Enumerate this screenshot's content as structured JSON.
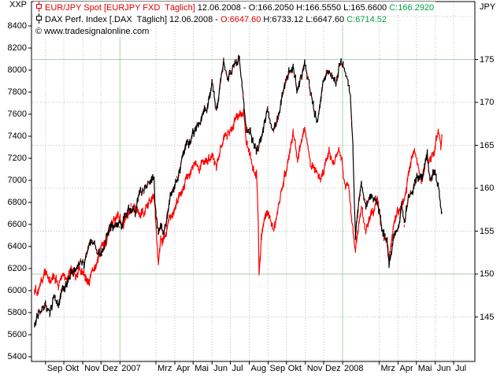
{
  "axis_units": {
    "left": "XXP",
    "right": "JPY"
  },
  "watermark": "© www.tradesignalonline.com",
  "legend": [
    {
      "icon": "candlestick-icon",
      "icon_color": "#dd0000",
      "title": "EUR/JPY Spot [EURJPY FXD  Täglich]",
      "title_color": "#dd0000",
      "segments": [
        {
          "text": " 12.06.2008 - O:166.2050 H:166.5550 L:165.6600 ",
          "color": "#000000"
        },
        {
          "text": "C:166.2920",
          "color": "#00a33a"
        }
      ]
    },
    {
      "icon": "candlestick-icon",
      "icon_color": "#000000",
      "title": "DAX Perf. Index [.DAX  Täglich]",
      "title_color": "#000000",
      "segments": [
        {
          "text": " 12.06.2008 - ",
          "color": "#000000"
        },
        {
          "text": "O:6647.60",
          "color": "#dd0000"
        },
        {
          "text": " H:6733.12 L:6647.60 ",
          "color": "#000000"
        },
        {
          "text": "C:6714.52",
          "color": "#00a33a"
        }
      ]
    }
  ],
  "axes": {
    "left": {
      "unit": "XXP",
      "ticks": [
        8400,
        8200,
        8000,
        7800,
        7600,
        7400,
        7200,
        7000,
        6800,
        6600,
        6400,
        6200,
        6000,
        5800,
        5600,
        5400
      ]
    },
    "right": {
      "unit": "JPY",
      "label_ticks": [
        175,
        170,
        165,
        160,
        155,
        150,
        145
      ],
      "solid_gridlines": [
        175,
        150
      ],
      "dotted_gridlines": [
        180,
        170,
        165,
        160,
        155,
        145,
        140
      ]
    },
    "bottom": {
      "ticks": [
        {
          "label": "Sep",
          "date": "2006-09-01",
          "year": false
        },
        {
          "label": "Okt",
          "date": "2006-10-01",
          "year": false
        },
        {
          "label": "Nov",
          "date": "2006-11-01",
          "year": false
        },
        {
          "label": "Dez",
          "date": "2006-12-01",
          "year": false
        },
        {
          "label": "2007",
          "date": "2007-01-01",
          "year": true
        },
        {
          "label": "Mrz",
          "date": "2007-03-01",
          "year": false
        },
        {
          "label": "Apr",
          "date": "2007-04-01",
          "year": false
        },
        {
          "label": "Mai",
          "date": "2007-05-01",
          "year": false
        },
        {
          "label": "Jun",
          "date": "2007-06-01",
          "year": false
        },
        {
          "label": "Jul",
          "date": "2007-07-01",
          "year": false
        },
        {
          "label": "Aug",
          "date": "2007-08-01",
          "year": false
        },
        {
          "label": "Sep",
          "date": "2007-09-01",
          "year": false
        },
        {
          "label": "Okt",
          "date": "2007-10-01",
          "year": false
        },
        {
          "label": "Nov",
          "date": "2007-11-01",
          "year": false
        },
        {
          "label": "Dez",
          "date": "2007-12-01",
          "year": false
        },
        {
          "label": "2008",
          "date": "2008-01-01",
          "year": true
        },
        {
          "label": "Mrz",
          "date": "2008-03-01",
          "year": false
        },
        {
          "label": "Apr",
          "date": "2008-04-01",
          "year": false
        },
        {
          "label": "Mai",
          "date": "2008-05-01",
          "year": false
        },
        {
          "label": "Jun",
          "date": "2008-06-01",
          "year": false
        },
        {
          "label": "Jul",
          "date": "2008-07-01",
          "year": false
        }
      ]
    }
  },
  "colors": {
    "series_red": "#ff0000",
    "series_black": "#000000",
    "down_fleck_red": "#cc0000",
    "grid_dotted": "#b8b8b8",
    "grid_solid_green": "#abcfab",
    "border": "#000000",
    "background": "#ffffff",
    "value_green": "#00a33a",
    "legend_red": "#dd0000"
  },
  "chart_data": {
    "type": "line",
    "title": "EUR/JPY Spot vs DAX Perf. Index, daily, Aug 2006 - Jun 2008",
    "time_range": {
      "start": "2006-08-09",
      "end": "2008-07-01"
    },
    "left_axis": {
      "label": "XXP",
      "top_value": 8400,
      "bottom_value": 5400
    },
    "right_axis": {
      "label": "JPY",
      "top_value": 180,
      "bottom_value": 140.2
    },
    "grid": "dotted-months-and-jpy-levels",
    "legend_position": "top-left",
    "series": [
      {
        "name": "EUR/JPY Spot",
        "symbol": "EURJPY FXD",
        "interval": "Täglich",
        "axis": "right",
        "color": "#ff0000",
        "last": {
          "date": "12.06.2008",
          "open": 166.205,
          "high": 166.555,
          "low": 165.66,
          "close": 166.292
        },
        "points": [
          [
            "2006-08-14",
            148.2
          ],
          [
            "2006-08-18",
            147.9
          ],
          [
            "2006-08-25",
            149.0
          ],
          [
            "2006-09-01",
            150.2
          ],
          [
            "2006-09-08",
            149.0
          ],
          [
            "2006-09-15",
            149.8
          ],
          [
            "2006-09-22",
            148.6
          ],
          [
            "2006-09-29",
            149.9
          ],
          [
            "2006-10-06",
            149.4
          ],
          [
            "2006-10-13",
            150.6
          ],
          [
            "2006-10-20",
            149.9
          ],
          [
            "2006-10-27",
            150.4
          ],
          [
            "2006-11-03",
            150.0
          ],
          [
            "2006-11-10",
            149.0
          ],
          [
            "2006-11-17",
            150.3
          ],
          [
            "2006-11-24",
            151.3
          ],
          [
            "2006-12-01",
            153.2
          ],
          [
            "2006-12-08",
            153.5
          ],
          [
            "2006-12-15",
            155.2
          ],
          [
            "2006-12-22",
            156.4
          ],
          [
            "2006-12-29",
            156.9
          ],
          [
            "2007-01-05",
            155.7
          ],
          [
            "2007-01-12",
            156.8
          ],
          [
            "2007-01-19",
            157.4
          ],
          [
            "2007-01-26",
            157.8
          ],
          [
            "2007-02-02",
            157.0
          ],
          [
            "2007-02-09",
            157.2
          ],
          [
            "2007-02-16",
            158.3
          ],
          [
            "2007-02-26",
            159.2
          ],
          [
            "2007-03-02",
            154.6
          ],
          [
            "2007-03-05",
            151.2
          ],
          [
            "2007-03-09",
            153.9
          ],
          [
            "2007-03-16",
            154.2
          ],
          [
            "2007-03-23",
            156.4
          ],
          [
            "2007-03-30",
            157.3
          ],
          [
            "2007-04-06",
            158.6
          ],
          [
            "2007-04-13",
            159.7
          ],
          [
            "2007-04-20",
            161.2
          ],
          [
            "2007-04-27",
            161.9
          ],
          [
            "2007-05-04",
            162.8
          ],
          [
            "2007-05-11",
            162.2
          ],
          [
            "2007-05-18",
            163.3
          ],
          [
            "2007-05-25",
            163.2
          ],
          [
            "2007-06-01",
            163.8
          ],
          [
            "2007-06-08",
            162.4
          ],
          [
            "2007-06-15",
            164.8
          ],
          [
            "2007-06-22",
            165.9
          ],
          [
            "2007-06-29",
            166.6
          ],
          [
            "2007-07-06",
            167.4
          ],
          [
            "2007-07-13",
            168.4
          ],
          [
            "2007-07-23",
            168.9
          ],
          [
            "2007-07-27",
            165.5
          ],
          [
            "2007-08-03",
            163.5
          ],
          [
            "2007-08-10",
            161.6
          ],
          [
            "2007-08-13",
            162.0
          ],
          [
            "2007-08-16",
            155.0
          ],
          [
            "2007-08-17",
            150.0
          ],
          [
            "2007-08-21",
            154.2
          ],
          [
            "2007-08-24",
            156.0
          ],
          [
            "2007-08-31",
            157.3
          ],
          [
            "2007-09-10",
            155.2
          ],
          [
            "2007-09-18",
            158.0
          ],
          [
            "2007-09-28",
            161.4
          ],
          [
            "2007-10-05",
            163.5
          ],
          [
            "2007-10-12",
            166.5
          ],
          [
            "2007-10-19",
            163.5
          ],
          [
            "2007-10-26",
            165.5
          ],
          [
            "2007-10-31",
            167.0
          ],
          [
            "2007-11-09",
            162.8
          ],
          [
            "2007-11-16",
            162.3
          ],
          [
            "2007-11-26",
            160.8
          ],
          [
            "2007-12-03",
            162.5
          ],
          [
            "2007-12-10",
            164.4
          ],
          [
            "2007-12-17",
            162.8
          ],
          [
            "2007-12-26",
            164.8
          ],
          [
            "2007-12-31",
            163.2
          ],
          [
            "2008-01-04",
            160.5
          ],
          [
            "2008-01-11",
            160.2
          ],
          [
            "2008-01-16",
            156.6
          ],
          [
            "2008-01-22",
            152.6
          ],
          [
            "2008-01-28",
            156.2
          ],
          [
            "2008-02-01",
            157.6
          ],
          [
            "2008-02-08",
            155.2
          ],
          [
            "2008-02-15",
            156.8
          ],
          [
            "2008-02-22",
            157.5
          ],
          [
            "2008-02-27",
            159.2
          ],
          [
            "2008-03-03",
            156.2
          ],
          [
            "2008-03-07",
            154.6
          ],
          [
            "2008-03-14",
            154.0
          ],
          [
            "2008-03-17",
            152.0
          ],
          [
            "2008-03-24",
            155.2
          ],
          [
            "2008-03-31",
            157.3
          ],
          [
            "2008-04-07",
            157.8
          ],
          [
            "2008-04-11",
            158.7
          ],
          [
            "2008-04-18",
            161.5
          ],
          [
            "2008-04-23",
            163.5
          ],
          [
            "2008-04-28",
            164.8
          ],
          [
            "2008-05-02",
            163.3
          ],
          [
            "2008-05-09",
            160.8
          ],
          [
            "2008-05-14",
            162.2
          ],
          [
            "2008-05-16",
            163.4
          ],
          [
            "2008-05-23",
            163.1
          ],
          [
            "2008-05-30",
            164.4
          ],
          [
            "2008-06-06",
            166.9
          ],
          [
            "2008-06-10",
            165.0
          ],
          [
            "2008-06-12",
            166.3
          ]
        ]
      },
      {
        "name": "DAX Perf. Index",
        "symbol": ".DAX",
        "interval": "Täglich",
        "axis": "left",
        "color": "#000000",
        "last": {
          "date": "12.06.2008",
          "open": 6647.6,
          "high": 6733.12,
          "low": 6647.6,
          "close": 6714.52
        },
        "points": [
          [
            "2006-08-14",
            5660
          ],
          [
            "2006-08-18",
            5780
          ],
          [
            "2006-08-25",
            5820
          ],
          [
            "2006-09-01",
            5870
          ],
          [
            "2006-09-08",
            5800
          ],
          [
            "2006-09-15",
            5940
          ],
          [
            "2006-09-22",
            5890
          ],
          [
            "2006-09-29",
            6010
          ],
          [
            "2006-10-06",
            6070
          ],
          [
            "2006-10-13",
            6160
          ],
          [
            "2006-10-20",
            6200
          ],
          [
            "2006-10-27",
            6270
          ],
          [
            "2006-11-03",
            6250
          ],
          [
            "2006-11-10",
            6390
          ],
          [
            "2006-11-17",
            6450
          ],
          [
            "2006-11-24",
            6370
          ],
          [
            "2006-12-01",
            6310
          ],
          [
            "2006-12-08",
            6450
          ],
          [
            "2006-12-15",
            6590
          ],
          [
            "2006-12-22",
            6600
          ],
          [
            "2006-12-29",
            6600
          ],
          [
            "2007-01-05",
            6600
          ],
          [
            "2007-01-12",
            6710
          ],
          [
            "2007-01-19",
            6750
          ],
          [
            "2007-01-26",
            6700
          ],
          [
            "2007-02-02",
            6890
          ],
          [
            "2007-02-09",
            6910
          ],
          [
            "2007-02-16",
            6960
          ],
          [
            "2007-02-26",
            7010
          ],
          [
            "2007-02-27",
            6820
          ],
          [
            "2007-03-01",
            6700
          ],
          [
            "2007-03-05",
            6530
          ],
          [
            "2007-03-09",
            6600
          ],
          [
            "2007-03-14",
            6500
          ],
          [
            "2007-03-23",
            6820
          ],
          [
            "2007-03-30",
            6920
          ],
          [
            "2007-04-06",
            7030
          ],
          [
            "2007-04-13",
            7190
          ],
          [
            "2007-04-20",
            7330
          ],
          [
            "2007-04-27",
            7360
          ],
          [
            "2007-05-04",
            7480
          ],
          [
            "2007-05-11",
            7500
          ],
          [
            "2007-05-18",
            7610
          ],
          [
            "2007-05-25",
            7660
          ],
          [
            "2007-06-01",
            7890
          ],
          [
            "2007-06-08",
            7620
          ],
          [
            "2007-06-15",
            7900
          ],
          [
            "2007-06-20",
            8070
          ],
          [
            "2007-06-26",
            7930
          ],
          [
            "2007-07-05",
            8010
          ],
          [
            "2007-07-13",
            8090
          ],
          [
            "2007-07-16",
            8100
          ],
          [
            "2007-07-20",
            7870
          ],
          [
            "2007-07-27",
            7450
          ],
          [
            "2007-08-03",
            7430
          ],
          [
            "2007-08-09",
            7290
          ],
          [
            "2007-08-16",
            7280
          ],
          [
            "2007-08-24",
            7480
          ],
          [
            "2007-08-31",
            7630
          ],
          [
            "2007-09-10",
            7440
          ],
          [
            "2007-09-18",
            7580
          ],
          [
            "2007-09-28",
            7860
          ],
          [
            "2007-10-05",
            7980
          ],
          [
            "2007-10-12",
            8030
          ],
          [
            "2007-10-18",
            7830
          ],
          [
            "2007-10-26",
            7950
          ],
          [
            "2007-10-31",
            8060
          ],
          [
            "2007-11-09",
            7810
          ],
          [
            "2007-11-16",
            7610
          ],
          [
            "2007-11-21",
            7520
          ],
          [
            "2007-11-30",
            7870
          ],
          [
            "2007-12-07",
            7990
          ],
          [
            "2007-12-14",
            7940
          ],
          [
            "2007-12-21",
            7870
          ],
          [
            "2007-12-28",
            8070
          ],
          [
            "2008-01-02",
            8045
          ],
          [
            "2008-01-08",
            7950
          ],
          [
            "2008-01-14",
            7780
          ],
          [
            "2008-01-18",
            7310
          ],
          [
            "2008-01-22",
            6480
          ],
          [
            "2008-01-28",
            6820
          ],
          [
            "2008-02-01",
            6950
          ],
          [
            "2008-02-08",
            6770
          ],
          [
            "2008-02-15",
            6830
          ],
          [
            "2008-02-22",
            6850
          ],
          [
            "2008-02-29",
            6750
          ],
          [
            "2008-03-07",
            6520
          ],
          [
            "2008-03-14",
            6450
          ],
          [
            "2008-03-17",
            6250
          ],
          [
            "2008-03-25",
            6480
          ],
          [
            "2008-03-31",
            6530
          ],
          [
            "2008-04-07",
            6770
          ],
          [
            "2008-04-11",
            6600
          ],
          [
            "2008-04-18",
            6840
          ],
          [
            "2008-04-25",
            6900
          ],
          [
            "2008-05-02",
            7050
          ],
          [
            "2008-05-09",
            7010
          ],
          [
            "2008-05-16",
            7160
          ],
          [
            "2008-05-19",
            7250
          ],
          [
            "2008-05-23",
            7000
          ],
          [
            "2008-05-30",
            7090
          ],
          [
            "2008-06-06",
            6950
          ],
          [
            "2008-06-11",
            6740
          ],
          [
            "2008-06-12",
            6715
          ]
        ]
      }
    ]
  }
}
